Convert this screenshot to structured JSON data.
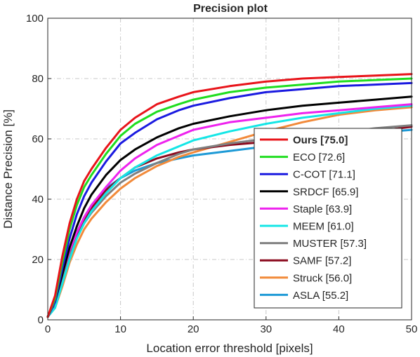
{
  "chart_data": {
    "type": "line",
    "title": "Precision plot",
    "xlabel": "Location error threshold [pixels]",
    "ylabel": "Distance Precision [%]",
    "xlim": [
      0,
      50
    ],
    "ylim": [
      0,
      100
    ],
    "xticks": [
      0,
      10,
      20,
      30,
      40,
      50
    ],
    "yticks": [
      0,
      20,
      40,
      60,
      80,
      100
    ],
    "grid": true,
    "legend_position": "bottom-right",
    "x": [
      0,
      1,
      2,
      3,
      4,
      5,
      6,
      8,
      10,
      12,
      15,
      18,
      20,
      25,
      30,
      35,
      40,
      45,
      50
    ],
    "series": [
      {
        "name": "Ours [75.0]",
        "bold": true,
        "color": "#e8141a",
        "values": [
          1,
          8,
          21,
          32,
          40,
          46,
          50,
          57,
          63,
          67,
          71.5,
          74,
          75.5,
          77.5,
          79,
          80,
          80.5,
          81,
          81.5
        ]
      },
      {
        "name": "ECO [72.6]",
        "bold": false,
        "color": "#1fdd1f",
        "values": [
          1,
          7,
          19,
          30,
          38,
          44,
          48,
          55,
          61,
          65,
          69,
          71.5,
          73,
          75.5,
          77,
          78,
          79,
          79.5,
          80
        ]
      },
      {
        "name": "C-COT [71.1]",
        "bold": false,
        "color": "#1a1ae0",
        "values": [
          1,
          6,
          17,
          27,
          35,
          41,
          45.5,
          52.5,
          58.5,
          62,
          66.5,
          69.5,
          71,
          73.5,
          75.5,
          76.5,
          77.5,
          78,
          78.5
        ]
      },
      {
        "name": "SRDCF [65.9]",
        "bold": false,
        "color": "#000000",
        "values": [
          1,
          6,
          15,
          24,
          31,
          37,
          41.5,
          48,
          53,
          56.5,
          60.5,
          63.5,
          65,
          67.5,
          69.5,
          71,
          72,
          73,
          74
        ]
      },
      {
        "name": "Staple [63.9]",
        "bold": false,
        "color": "#ee22ee",
        "values": [
          1,
          6,
          15,
          23,
          29,
          34,
          38,
          44,
          49.5,
          53.5,
          58,
          61,
          63,
          65.5,
          67,
          68.5,
          69.5,
          70.5,
          71.5
        ]
      },
      {
        "name": "MEEM [61.0]",
        "bold": false,
        "color": "#14e6e6",
        "values": [
          1,
          4,
          12,
          20,
          27,
          32,
          36,
          42,
          47,
          50.5,
          54.5,
          57.5,
          59.5,
          62.5,
          65,
          67,
          68.5,
          70,
          71
        ]
      },
      {
        "name": "MUSTER [57.3]",
        "bold": false,
        "color": "#808080",
        "values": [
          1,
          4,
          13,
          21,
          27,
          32,
          35.5,
          41,
          45.5,
          48.5,
          52,
          55,
          56.5,
          58.5,
          60,
          61,
          62,
          63.5,
          64.5
        ]
      },
      {
        "name": "SAMF [57.2]",
        "bold": false,
        "color": "#8b0a1e",
        "values": [
          1,
          5,
          14,
          22,
          28,
          33,
          37,
          43,
          47,
          50.5,
          53.5,
          55.5,
          56.5,
          58,
          59,
          60,
          61,
          62.5,
          64
        ]
      },
      {
        "name": "Struck [56.0]",
        "bold": false,
        "color": "#f28a3a",
        "values": [
          1,
          4,
          11,
          19,
          25,
          30,
          33.5,
          39,
          43.5,
          47,
          51,
          54,
          55.5,
          59,
          62.5,
          65.5,
          68,
          69.5,
          70.5
        ]
      },
      {
        "name": "ASLA [55.2]",
        "bold": false,
        "color": "#1e9ad6",
        "values": [
          1,
          5,
          14,
          23,
          29,
          34,
          38,
          43.5,
          47,
          49.5,
          52,
          53.5,
          54.5,
          56,
          57.5,
          59,
          60.5,
          62,
          63
        ]
      }
    ]
  }
}
